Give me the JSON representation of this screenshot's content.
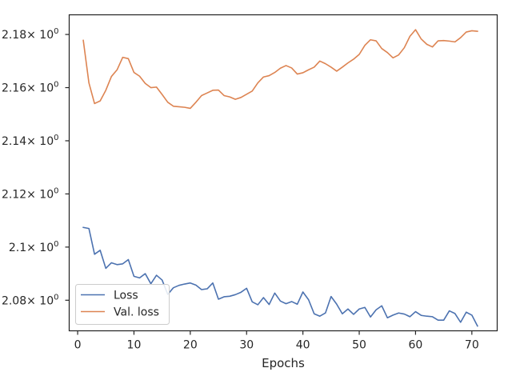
{
  "chart_data": {
    "type": "line",
    "title": "",
    "xlabel": "Epochs",
    "ylabel": "",
    "xlim": [
      -1.5,
      74.5
    ],
    "ylim": [
      2.0685,
      2.1874
    ],
    "x_ticks": [
      0,
      10,
      20,
      30,
      40,
      50,
      60,
      70
    ],
    "x_tick_labels": [
      "0",
      "10",
      "20",
      "30",
      "40",
      "50",
      "60",
      "70"
    ],
    "y_ticks": [
      2.08,
      2.1,
      2.12,
      2.14,
      2.16,
      2.18
    ],
    "y_tick_labels": [
      {
        "mant": "2.08",
        "exp": "0"
      },
      {
        "mant": "2.1",
        "exp": "0"
      },
      {
        "mant": "2.12",
        "exp": "0"
      },
      {
        "mant": "2.14",
        "exp": "0"
      },
      {
        "mant": "2.16",
        "exp": "0"
      },
      {
        "mant": "2.18",
        "exp": "0"
      }
    ],
    "y_tick_base": "× 10",
    "grid": false,
    "legend_position": "lower-left",
    "x": [
      1,
      2,
      3,
      4,
      5,
      6,
      7,
      8,
      9,
      10,
      11,
      12,
      13,
      14,
      15,
      16,
      17,
      18,
      19,
      20,
      21,
      22,
      23,
      24,
      25,
      26,
      27,
      28,
      29,
      30,
      31,
      32,
      33,
      34,
      35,
      36,
      37,
      38,
      39,
      40,
      41,
      42,
      43,
      44,
      45,
      46,
      47,
      48,
      49,
      50,
      51,
      52,
      53,
      54,
      55,
      56,
      57,
      58,
      59,
      60,
      61,
      62,
      63,
      64,
      65,
      66,
      67,
      68,
      69,
      70,
      71
    ],
    "series": [
      {
        "name": "Loss",
        "color": "#4c72b0",
        "values": [
          2.1074,
          2.107,
          2.0973,
          2.0988,
          2.092,
          2.0941,
          2.0934,
          2.0937,
          2.0953,
          2.089,
          2.0884,
          2.09,
          2.0862,
          2.0894,
          2.0876,
          2.0822,
          2.0847,
          2.0856,
          2.0861,
          2.0865,
          2.0857,
          2.084,
          2.0843,
          2.0865,
          2.0804,
          2.0813,
          2.0815,
          2.0821,
          2.083,
          2.0845,
          2.0794,
          2.0783,
          2.081,
          2.0784,
          2.0827,
          2.0797,
          2.0787,
          2.0795,
          2.0785,
          2.0831,
          2.0802,
          2.0749,
          2.074,
          2.0752,
          2.0814,
          2.0785,
          2.0749,
          2.0767,
          2.0747,
          2.0767,
          2.0773,
          2.0737,
          2.0764,
          2.0779,
          2.0734,
          2.0744,
          2.0752,
          2.0748,
          2.0738,
          2.0757,
          2.0743,
          2.074,
          2.0738,
          2.0725,
          2.0725,
          2.076,
          2.075,
          2.0717,
          2.0755,
          2.0744,
          2.0703
        ]
      },
      {
        "name": "Val. loss",
        "color": "#dd8452",
        "values": [
          2.1778,
          2.1618,
          2.154,
          2.155,
          2.159,
          2.1642,
          2.1667,
          2.1714,
          2.1709,
          2.1657,
          2.1643,
          2.1616,
          2.16,
          2.1602,
          2.1574,
          2.1545,
          2.153,
          2.1528,
          2.1526,
          2.1522,
          2.1545,
          2.157,
          2.158,
          2.159,
          2.1591,
          2.157,
          2.1565,
          2.1556,
          2.1563,
          2.1575,
          2.1587,
          2.1618,
          2.164,
          2.1645,
          2.1657,
          2.1673,
          2.1683,
          2.1674,
          2.1651,
          2.1656,
          2.1667,
          2.1677,
          2.17,
          2.169,
          2.1677,
          2.1662,
          2.1677,
          2.1693,
          2.1707,
          2.1725,
          2.1759,
          2.178,
          2.1776,
          2.1747,
          2.1732,
          2.1712,
          2.1723,
          2.175,
          2.1793,
          2.1818,
          2.1783,
          2.1763,
          2.1753,
          2.1776,
          2.1777,
          2.1775,
          2.1772,
          2.1788,
          2.1809,
          2.1814,
          2.1812
        ]
      }
    ]
  }
}
